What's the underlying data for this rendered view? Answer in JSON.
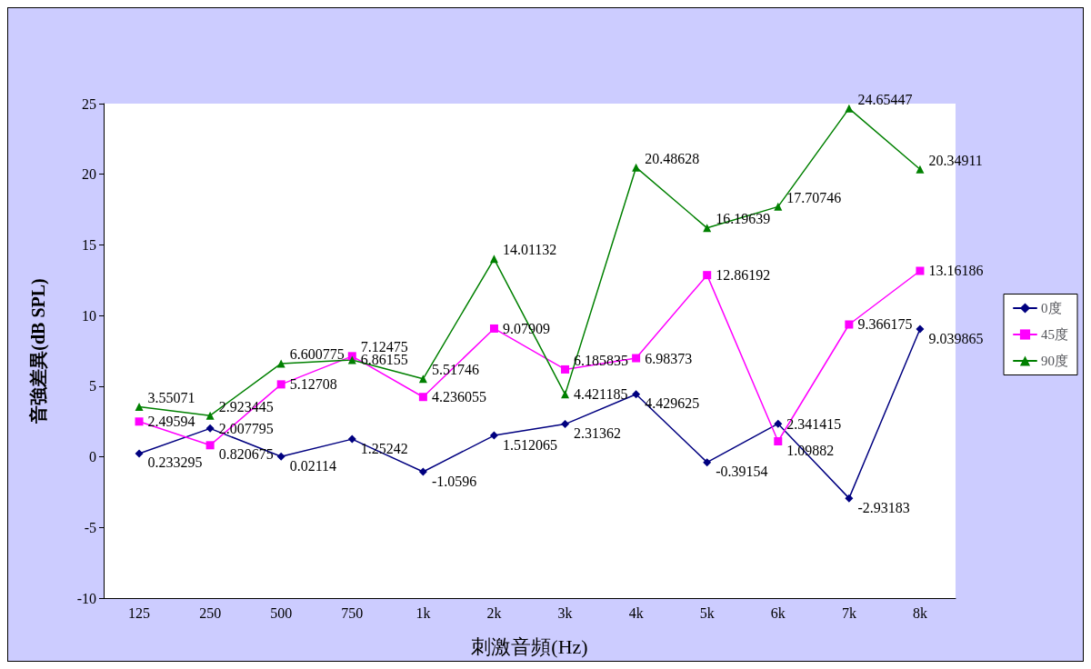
{
  "chart_data": {
    "type": "line",
    "xlabel": "刺激音頻(Hz)",
    "ylabel": "音強差異(dB SPL)",
    "categories": [
      "125",
      "250",
      "500",
      "750",
      "1k",
      "2k",
      "3k",
      "4k",
      "5k",
      "6k",
      "7k",
      "8k"
    ],
    "series": [
      {
        "name": "0度",
        "color": "#000080",
        "marker": "diamond",
        "values": [
          0.233295,
          2.007795,
          0.02114,
          1.25242,
          -1.0596,
          1.512065,
          2.31362,
          4.429625,
          -0.39154,
          2.341415,
          -2.93183,
          9.039865
        ]
      },
      {
        "name": "45度",
        "color": "#ff00ff",
        "marker": "square",
        "values": [
          2.49594,
          0.820675,
          5.12708,
          7.12475,
          4.236055,
          9.07909,
          6.185835,
          6.98373,
          12.86192,
          1.09882,
          9.366175,
          13.16186
        ]
      },
      {
        "name": "90度",
        "color": "#008000",
        "marker": "triangle",
        "values": [
          3.55071,
          2.923445,
          6.600775,
          6.86155,
          5.51746,
          14.01132,
          4.421185,
          20.48628,
          16.19639,
          17.70746,
          24.65447,
          20.34911
        ]
      }
    ],
    "ylim": [
      -10,
      25
    ],
    "yticks": [
      -10,
      -5,
      0,
      5,
      10,
      15,
      20,
      25
    ],
    "grid": false,
    "legend": "right",
    "data_labels": true,
    "line_style": "solid"
  }
}
